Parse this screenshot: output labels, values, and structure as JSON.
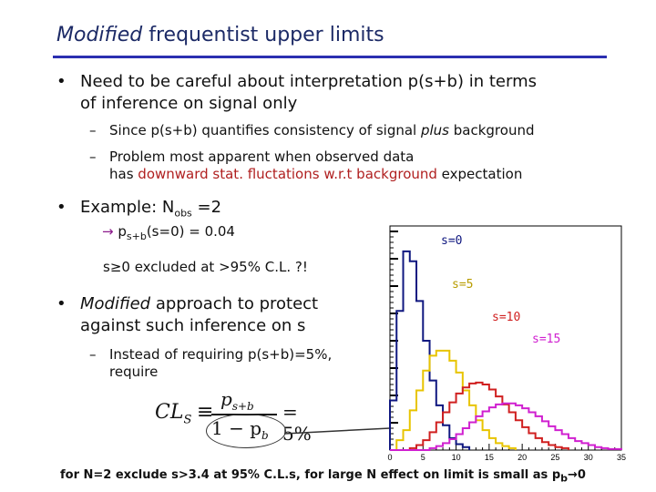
{
  "title_em": "Modified",
  "title_rest": " frequentist upper limits",
  "bullet1": {
    "line1": "Need to be careful about interpretation p(s+b) in terms",
    "line2": "of inference on signal only",
    "sub1": {
      "a": "Since p(s+b) quantifies consistency of signal ",
      "em": "plus",
      "b": " background"
    },
    "sub2": {
      "line1": "Problem most apparent when observed data",
      "line2a": "has ",
      "line2red": "downward stat. fluctations w.r.t background",
      "line2b": " expectation"
    }
  },
  "bullet2": {
    "pre": "Example: N",
    "sub": "obs",
    "post": " =2",
    "arrow_line": {
      "arrow": "→",
      "a": "p",
      "sub": "s+b",
      "b": "(s=0) = 0.04"
    },
    "excluded": "s≥0 excluded at >95% C.L. ?!"
  },
  "bullet3": {
    "em": "Modified",
    "line1": " approach to protect",
    "line2": "against such inference on s",
    "sub1": {
      "line1": "Instead of requiring p(s+b)=5%,",
      "line2": "require"
    }
  },
  "formula": {
    "lhs": "CL",
    "lhs_sub": "S",
    "equiv": "≡",
    "num": "p",
    "num_sub": "s+b",
    "den_a": "1 − p",
    "den_sub": "b",
    "rhs": "= 5%"
  },
  "legend": {
    "s0": "s=0",
    "s5": "s=5",
    "s10": "s=10",
    "s15": "s=15"
  },
  "caption": {
    "a": "for N=2 exclude s>3.4 at 95% C.L.s, for large N effect on limit is small as p",
    "sub": "b",
    "arrow": "→",
    "b": "0"
  },
  "chart_data": {
    "type": "histogram",
    "xlim": [
      0,
      35
    ],
    "x_ticks": [
      "0",
      "5",
      "10",
      "15",
      "20",
      "25",
      "30",
      "35"
    ],
    "series": [
      {
        "name": "s=0",
        "color": "#101880",
        "values": [
          0.05,
          0.14,
          0.2,
          0.19,
          0.15,
          0.11,
          0.07,
          0.045,
          0.025,
          0.012,
          0.006,
          0.003
        ]
      },
      {
        "name": "s=5",
        "color": "#e8c400",
        "values": [
          0,
          0.01,
          0.02,
          0.04,
          0.06,
          0.08,
          0.095,
          0.1,
          0.1,
          0.09,
          0.078,
          0.06,
          0.045,
          0.03,
          0.02,
          0.012,
          0.007,
          0.004,
          0.002
        ]
      },
      {
        "name": "s=10",
        "color": "#d02020",
        "values": [
          0,
          0,
          0,
          0.002,
          0.005,
          0.01,
          0.018,
          0.028,
          0.038,
          0.048,
          0.057,
          0.063,
          0.067,
          0.068,
          0.066,
          0.061,
          0.054,
          0.046,
          0.038,
          0.03,
          0.023,
          0.017,
          0.012,
          0.008,
          0.005,
          0.003,
          0.002
        ]
      },
      {
        "name": "s=15",
        "color": "#d020d0",
        "values": [
          0,
          0,
          0,
          0,
          0,
          0,
          0.002,
          0.004,
          0.007,
          0.011,
          0.016,
          0.022,
          0.028,
          0.034,
          0.039,
          0.043,
          0.046,
          0.047,
          0.047,
          0.045,
          0.042,
          0.038,
          0.034,
          0.029,
          0.024,
          0.02,
          0.016,
          0.012,
          0.009,
          0.007,
          0.005,
          0.003,
          0.002,
          0.001,
          0.001
        ]
      }
    ]
  }
}
